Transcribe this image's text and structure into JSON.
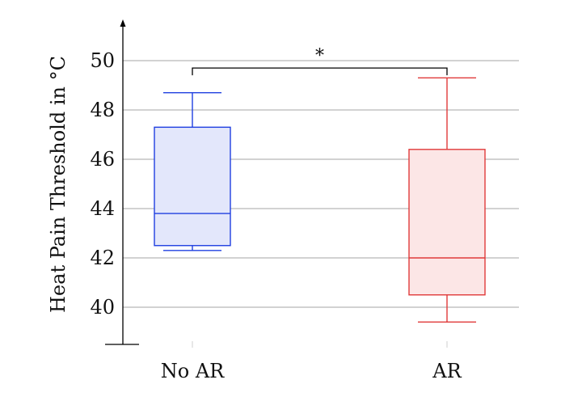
{
  "chart_data": {
    "type": "box",
    "ylabel": "Heat Pain Threshold in °C",
    "ylim": [
      38.5,
      51.5
    ],
    "yticks": [
      40,
      42,
      44,
      46,
      48,
      50
    ],
    "ytick_labels": [
      "40",
      "42",
      "44",
      "46",
      "48",
      "50"
    ],
    "grid": true,
    "categories": [
      "No AR",
      "AR"
    ],
    "boxes": [
      {
        "category": "No AR",
        "whisker_low": 42.3,
        "q1": 42.5,
        "median": 43.8,
        "q3": 47.3,
        "whisker_high": 48.7,
        "color": "#1f3fe0",
        "fill": "#e3e7fb"
      },
      {
        "category": "AR",
        "whisker_low": 39.4,
        "q1": 40.5,
        "median": 42.0,
        "q3": 46.4,
        "whisker_high": 49.3,
        "color": "#e03a3a",
        "fill": "#fce6e6"
      }
    ],
    "significance": {
      "from": "No AR",
      "to": "AR",
      "y": 49.7,
      "label": "*"
    }
  }
}
